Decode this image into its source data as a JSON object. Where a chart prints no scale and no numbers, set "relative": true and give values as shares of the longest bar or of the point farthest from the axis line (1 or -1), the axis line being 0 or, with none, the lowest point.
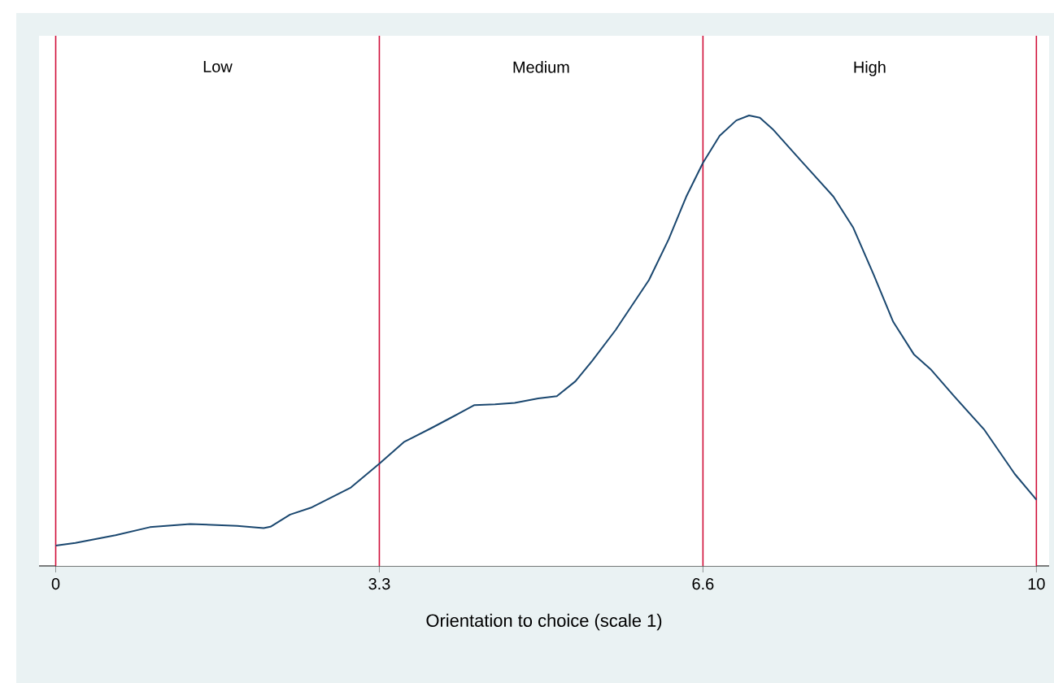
{
  "chart_data": {
    "type": "line",
    "xlabel": "Orientation to choice (scale 1)",
    "relative": true,
    "xlim": [
      -0.17,
      10.13
    ],
    "xticks": [
      0,
      {
        "value": 3.3,
        "label": "3.3"
      },
      {
        "value": 6.6,
        "label": "6.6"
      },
      10
    ],
    "ref_lines": [
      {
        "axis": "x",
        "value": 0,
        "color": "#d0103a"
      },
      {
        "axis": "x",
        "value": 3.3,
        "color": "#d0103a"
      },
      {
        "axis": "x",
        "value": 6.6,
        "color": "#d0103a"
      },
      {
        "axis": "x",
        "value": 10,
        "color": "#d0103a"
      }
    ],
    "bands": [
      {
        "axis": "x",
        "from": 0,
        "to": 3.3,
        "label": "Low",
        "color": "#ffffff"
      },
      {
        "axis": "x",
        "from": 3.3,
        "to": 6.6,
        "label": "Medium",
        "color": "#ffffff"
      },
      {
        "axis": "x",
        "from": 6.6,
        "to": 10,
        "label": "High",
        "color": "#ffffff"
      }
    ],
    "series": [
      {
        "color": "#1a476f",
        "x": [
          0,
          0.2,
          0.61,
          0.96,
          1.37,
          1.85,
          2.12,
          2.19,
          2.39,
          2.6,
          3.01,
          3.3,
          3.55,
          3.83,
          4.03,
          4.27,
          4.48,
          4.68,
          4.92,
          5.11,
          5.3,
          5.47,
          5.71,
          6.05,
          6.25,
          6.43,
          6.6,
          6.77,
          6.94,
          7.07,
          7.18,
          7.31,
          7.59,
          7.93,
          8.13,
          8.34,
          8.54,
          8.75,
          8.92,
          9.16,
          9.47,
          9.78,
          10
        ],
        "values": [
          0.045,
          0.051,
          0.068,
          0.086,
          0.093,
          0.089,
          0.084,
          0.087,
          0.114,
          0.129,
          0.174,
          0.227,
          0.275,
          0.306,
          0.329,
          0.357,
          0.359,
          0.362,
          0.372,
          0.377,
          0.41,
          0.455,
          0.524,
          0.635,
          0.725,
          0.82,
          0.895,
          0.955,
          0.989,
          1.0,
          0.995,
          0.97,
          0.902,
          0.82,
          0.752,
          0.647,
          0.542,
          0.47,
          0.437,
          0.377,
          0.302,
          0.204,
          0.147
        ]
      }
    ]
  }
}
